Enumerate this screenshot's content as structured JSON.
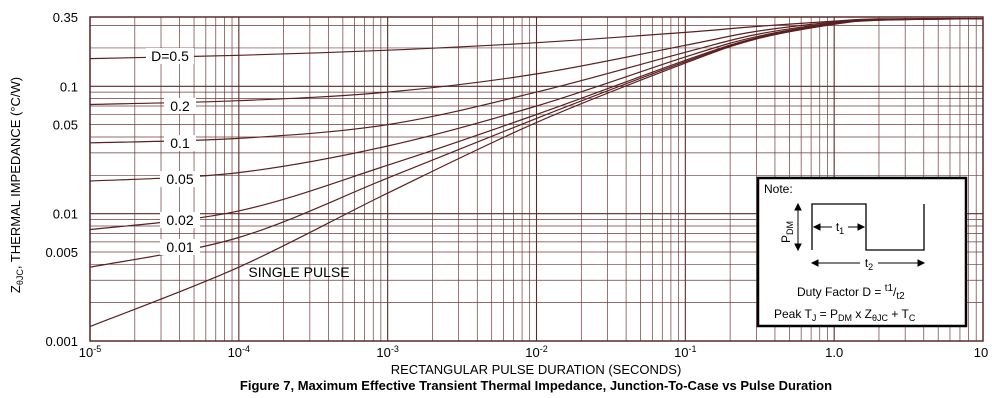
{
  "chart_data": {
    "type": "line",
    "title": "Figure 7, Maximum Effective Transient Thermal Impedance, Junction-To-Case vs Pulse Duration",
    "xlabel": "RECTANGULAR PULSE DURATION (SECONDS)",
    "ylabel_parts": [
      "Z",
      "θJC",
      ", THERMAL IMPEDANCE (°C/W)"
    ],
    "x_scale": "log",
    "y_scale": "log",
    "xlim": [
      1e-05,
      10
    ],
    "ylim": [
      0.001,
      0.35
    ],
    "grid": true,
    "x_ticks": [
      {
        "value": 1e-05,
        "base": "10",
        "exp": "-5"
      },
      {
        "value": 0.0001,
        "base": "10",
        "exp": "-4"
      },
      {
        "value": 0.001,
        "base": "10",
        "exp": "-3"
      },
      {
        "value": 0.01,
        "base": "10",
        "exp": "-2"
      },
      {
        "value": 0.1,
        "base": "10",
        "exp": "-1"
      },
      {
        "value": 1,
        "base": "1.0",
        "exp": ""
      },
      {
        "value": 10,
        "base": "10",
        "exp": ""
      }
    ],
    "y_ticks": [
      {
        "value": 0.35,
        "label": "0.35"
      },
      {
        "value": 0.1,
        "label": "0.1"
      },
      {
        "value": 0.05,
        "label": "0.05"
      },
      {
        "value": 0.01,
        "label": "0.01"
      },
      {
        "value": 0.005,
        "label": "0.005"
      },
      {
        "value": 0.001,
        "label": "0.001"
      }
    ],
    "series": [
      {
        "name": "D=0.5",
        "x": [
          1e-05,
          0.0001,
          0.001,
          0.01,
          0.1,
          0.3,
          1,
          2,
          10
        ],
        "y": [
          0.165,
          0.175,
          0.192,
          0.22,
          0.265,
          0.295,
          0.325,
          0.338,
          0.34
        ]
      },
      {
        "name": "0.2",
        "x": [
          1e-05,
          0.0001,
          0.001,
          0.01,
          0.1,
          0.3,
          1,
          2,
          10
        ],
        "y": [
          0.072,
          0.077,
          0.09,
          0.125,
          0.21,
          0.27,
          0.32,
          0.336,
          0.34
        ]
      },
      {
        "name": "0.1",
        "x": [
          1e-05,
          0.0001,
          0.001,
          0.01,
          0.1,
          0.3,
          1,
          2,
          10
        ],
        "y": [
          0.036,
          0.039,
          0.05,
          0.09,
          0.185,
          0.255,
          0.315,
          0.334,
          0.34
        ]
      },
      {
        "name": "0.05",
        "x": [
          1e-05,
          0.0001,
          0.001,
          0.01,
          0.1,
          0.3,
          1,
          2,
          10
        ],
        "y": [
          0.018,
          0.021,
          0.034,
          0.07,
          0.17,
          0.245,
          0.312,
          0.333,
          0.34
        ]
      },
      {
        "name": "0.02",
        "x": [
          1e-05,
          0.0001,
          0.001,
          0.01,
          0.1,
          0.3,
          1,
          2,
          10
        ],
        "y": [
          0.0075,
          0.0105,
          0.024,
          0.06,
          0.16,
          0.24,
          0.31,
          0.332,
          0.34
        ]
      },
      {
        "name": "0.01",
        "x": [
          1e-05,
          0.0001,
          0.001,
          0.01,
          0.1,
          0.3,
          1,
          2,
          10
        ],
        "y": [
          0.0038,
          0.0065,
          0.019,
          0.056,
          0.156,
          0.237,
          0.308,
          0.331,
          0.34
        ]
      },
      {
        "name": "SINGLE PULSE",
        "x": [
          1e-05,
          0.0001,
          0.001,
          0.01,
          0.1,
          0.3,
          1,
          2,
          10
        ],
        "y": [
          0.0013,
          0.0038,
          0.0145,
          0.052,
          0.152,
          0.235,
          0.307,
          0.33,
          0.34
        ]
      }
    ],
    "curve_labels": [
      {
        "text": "D=0.5",
        "series": 0
      },
      {
        "text": "0.2",
        "series": 1
      },
      {
        "text": "0.1",
        "series": 2
      },
      {
        "text": "0.05",
        "series": 3
      },
      {
        "text": "0.02",
        "series": 4
      },
      {
        "text": "0.01",
        "series": 5
      },
      {
        "text": "SINGLE PULSE",
        "series": 6
      }
    ],
    "note": {
      "title": "Note:",
      "pdm": [
        "P",
        "DM"
      ],
      "t1": [
        "t",
        "1"
      ],
      "t2": [
        "t",
        "2"
      ],
      "duty_factor": [
        "Duty Factor  D = ",
        "t1",
        "/",
        "t2"
      ],
      "peak": [
        "Peak T",
        "J",
        " = P",
        "DM",
        " x Z",
        "θJC",
        " + T",
        "C"
      ]
    }
  }
}
